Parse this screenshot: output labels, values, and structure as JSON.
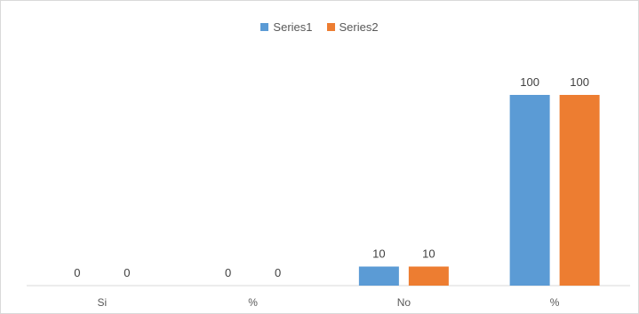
{
  "chart_data": {
    "type": "bar",
    "categories": [
      "Si",
      "%",
      "No",
      "%"
    ],
    "series": [
      {
        "name": "Series1",
        "values": [
          0,
          0,
          10,
          100
        ],
        "color": "#5b9bd5"
      },
      {
        "name": "Series2",
        "values": [
          0,
          0,
          10,
          100
        ],
        "color": "#ed7d31"
      }
    ],
    "data_labels": true,
    "legend_position": "top",
    "grid": false,
    "ylim": [
      0,
      100
    ]
  }
}
